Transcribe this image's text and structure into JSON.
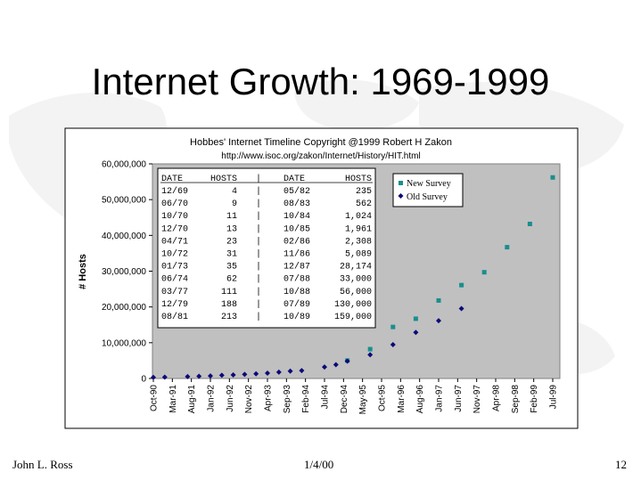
{
  "slide": {
    "title": "Internet Growth: 1969-1999",
    "footer_left": "John L. Ross",
    "footer_center": "1/4/00",
    "footer_right": "12"
  },
  "chart_data": {
    "type": "scatter",
    "title": "Hobbes' Internet Timeline Copyright @1999 Robert H Zakon",
    "subtitle": "http://www.isoc.org/zakon/Internet/History/HIT.html",
    "ylabel": "# Hosts",
    "xlabel": "",
    "ylim": [
      0,
      60000000
    ],
    "yticks": [
      "0",
      "10,000,000",
      "20,000,000",
      "30,000,000",
      "40,000,000",
      "50,000,000",
      "60,000,000"
    ],
    "categories": [
      "Oct-90",
      "Mar-91",
      "Aug-91",
      "Jan-92",
      "Jun-92",
      "Nov-92",
      "Apr-93",
      "Sep-93",
      "Feb-94",
      "Jul-94",
      "Dec-94",
      "May-95",
      "Oct-95",
      "Mar-96",
      "Aug-96",
      "Jan-97",
      "Jun-97",
      "Nov-97",
      "Apr-98",
      "Sep-98",
      "Feb-99",
      "Jul-99"
    ],
    "grid": false,
    "legend_position": "top-center",
    "colors": {
      "plot_bg": "#c0c0c0",
      "new_survey": "#1a8e8e",
      "old_survey": "#0a0a78"
    },
    "series": [
      {
        "name": "New Survey",
        "marker": "square",
        "x": [
          "Jan-95",
          "Jul-95",
          "Jan-96",
          "Jul-96",
          "Jan-97",
          "Jul-97",
          "Jan-98",
          "Jul-98",
          "Jan-99",
          "Jul-99"
        ],
        "values": [
          5000000,
          8200000,
          14400000,
          16700000,
          21800000,
          26100000,
          29700000,
          36700000,
          43200000,
          56200000
        ]
      },
      {
        "name": "Old Survey",
        "marker": "diamond",
        "x": [
          "Oct-90",
          "Jan-91",
          "Jul-91",
          "Oct-91",
          "Jan-92",
          "Apr-92",
          "Jul-92",
          "Oct-92",
          "Jan-93",
          "Apr-93",
          "Jul-93",
          "Oct-93",
          "Jan-94",
          "Jul-94",
          "Oct-94",
          "Jan-95",
          "Jul-95",
          "Jan-96",
          "Jul-96",
          "Jan-97",
          "Jul-97"
        ],
        "values": [
          313000,
          376000,
          535000,
          617000,
          727000,
          890000,
          992000,
          1136000,
          1313000,
          1486000,
          1776000,
          2056000,
          2217000,
          3212000,
          3864000,
          4852000,
          6642000,
          9472000,
          12881000,
          16146000,
          19540000
        ]
      }
    ],
    "table": {
      "headers": [
        "DATE",
        "HOSTS",
        "DATE",
        "HOSTS"
      ],
      "rows": [
        [
          "12/69",
          "4",
          "05/82",
          "235"
        ],
        [
          "06/70",
          "9",
          "08/83",
          "562"
        ],
        [
          "10/70",
          "11",
          "10/84",
          "1,024"
        ],
        [
          "12/70",
          "13",
          "10/85",
          "1,961"
        ],
        [
          "04/71",
          "23",
          "02/86",
          "2,308"
        ],
        [
          "10/72",
          "31",
          "11/86",
          "5,089"
        ],
        [
          "01/73",
          "35",
          "12/87",
          "28,174"
        ],
        [
          "06/74",
          "62",
          "07/88",
          "33,000"
        ],
        [
          "03/77",
          "111",
          "10/88",
          "56,000"
        ],
        [
          "12/79",
          "188",
          "07/89",
          "130,000"
        ],
        [
          "08/81",
          "213",
          "10/89",
          "159,000"
        ]
      ]
    }
  }
}
